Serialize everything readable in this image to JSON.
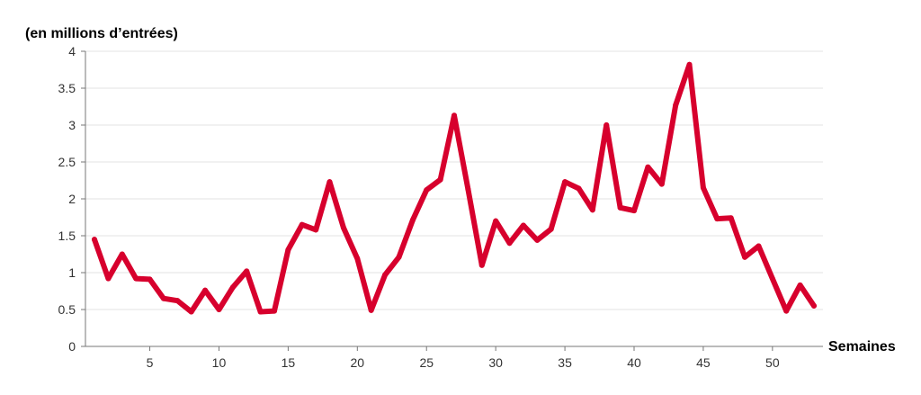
{
  "chart_data": {
    "type": "line",
    "ylabel": "(en millions d’entrées)",
    "xlabel": "Semaines",
    "ylim": [
      0,
      4
    ],
    "xlim": [
      1,
      53
    ],
    "y_ticks": [
      0,
      0.5,
      1,
      1.5,
      2,
      2.5,
      3,
      3.5,
      4
    ],
    "y_tick_labels": [
      "0",
      "0.5",
      "1",
      "1.5",
      "2",
      "2.5",
      "3",
      "3.5",
      "4"
    ],
    "x_ticks": [
      5,
      10,
      15,
      20,
      25,
      30,
      35,
      40,
      45,
      50
    ],
    "x_tick_labels": [
      "5",
      "10",
      "15",
      "20",
      "25",
      "30",
      "35",
      "40",
      "45",
      "50"
    ],
    "grid": "horizontal",
    "legend": "none",
    "series": [
      {
        "color": "#d7002d",
        "x": [
          1,
          2,
          3,
          4,
          5,
          6,
          7,
          8,
          9,
          10,
          11,
          12,
          13,
          14,
          15,
          16,
          17,
          18,
          19,
          20,
          21,
          22,
          23,
          24,
          25,
          26,
          27,
          28,
          29,
          30,
          31,
          32,
          33,
          34,
          35,
          36,
          37,
          38,
          39,
          40,
          41,
          42,
          43,
          44,
          45,
          46,
          47,
          48,
          49,
          50,
          51,
          52,
          53
        ],
        "values": [
          1.45,
          0.92,
          1.25,
          0.92,
          0.91,
          0.65,
          0.62,
          0.47,
          0.76,
          0.5,
          0.8,
          1.02,
          0.47,
          0.48,
          1.31,
          1.65,
          1.58,
          2.23,
          1.61,
          1.19,
          0.49,
          0.97,
          1.21,
          1.71,
          2.12,
          2.26,
          3.13,
          2.13,
          1.1,
          1.7,
          1.4,
          1.64,
          1.44,
          1.59,
          2.23,
          2.14,
          1.85,
          3.0,
          1.88,
          1.84,
          2.43,
          2.2,
          3.27,
          3.82,
          2.15,
          1.73,
          1.74,
          1.21,
          1.36,
          0.92,
          0.48,
          0.83,
          0.55
        ]
      }
    ]
  }
}
